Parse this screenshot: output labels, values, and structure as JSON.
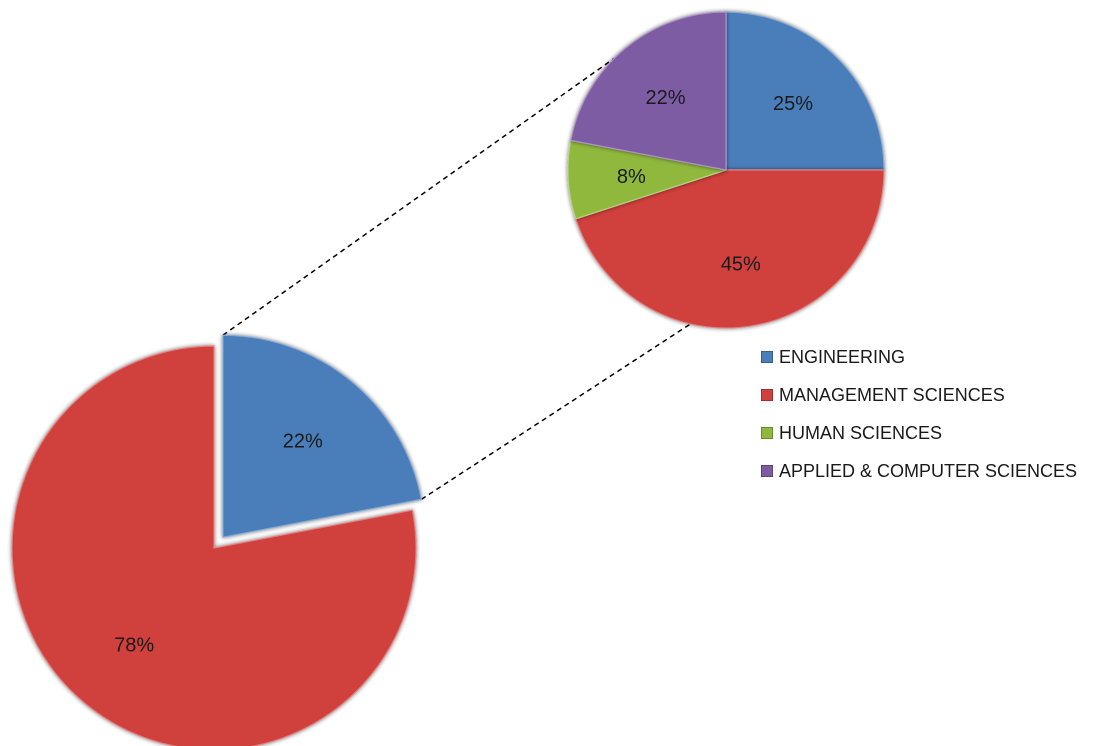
{
  "chart_data": [
    {
      "type": "pie",
      "categories": [
        "ENGINEERING",
        "MANAGEMENT SCIENCES"
      ],
      "values": [
        22,
        78
      ],
      "labels": [
        "22%",
        "78%"
      ],
      "exploded": "ENGINEERING"
    },
    {
      "type": "pie",
      "categories": [
        "ENGINEERING",
        "MANAGEMENT SCIENCES",
        "HUMAN SCIENCES",
        "APPLIED & COMPUTER SCIENCES"
      ],
      "values": [
        25,
        45,
        8,
        22
      ],
      "labels": [
        "25%",
        "45%",
        "8%",
        "22%"
      ],
      "legend": "right"
    }
  ],
  "colors": {
    "ENGINEERING": "#4a7ebb",
    "MANAGEMENT SCIENCES": "#d0413e",
    "HUMAN SCIENCES": "#8fb83e",
    "APPLIED & COMPUTER SCIENCES": "#7e5ba3"
  },
  "legend": {
    "items": [
      {
        "label": "ENGINEERING",
        "color": "#4a7ebb"
      },
      {
        "label": "MANAGEMENT SCIENCES",
        "color": "#d0413e"
      },
      {
        "label": "HUMAN SCIENCES",
        "color": "#8fb83e"
      },
      {
        "label": "APPLIED & COMPUTER SCIENCES",
        "color": "#7e5ba3"
      }
    ]
  }
}
